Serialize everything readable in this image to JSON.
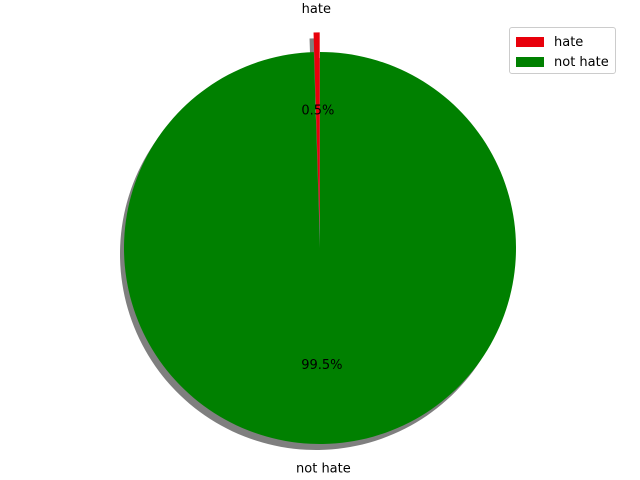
{
  "chart_data": {
    "type": "pie",
    "title": "",
    "categories": [
      "hate",
      "not hate"
    ],
    "values": [
      0.5,
      99.5
    ],
    "autopct_labels": [
      "0.5%",
      "99.5%"
    ],
    "colors": [
      "#e8000b",
      "#008000"
    ],
    "explode": [
      0.1,
      0
    ],
    "shadow": true,
    "start_angle_deg": 90,
    "legend_position": "top-right"
  },
  "legend": {
    "entries": [
      {
        "label": "hate",
        "color": "#e8000b"
      },
      {
        "label": "not hate",
        "color": "#008000"
      }
    ]
  }
}
